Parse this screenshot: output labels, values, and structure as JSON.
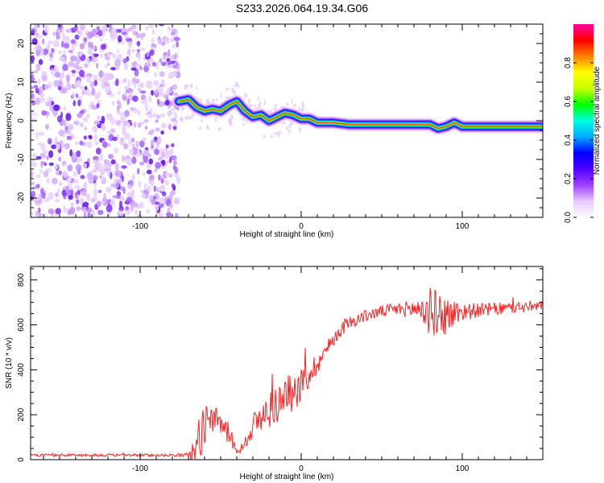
{
  "title": "S233.2026.064.19.34.G06",
  "chart_data": [
    {
      "type": "heatmap",
      "title": "S233.2026.064.19.34.G06",
      "xlabel": "Height of straight line (km)",
      "ylabel": "Frequency (Hz)",
      "xlim": [
        -168,
        150
      ],
      "ylim": [
        -25,
        25
      ],
      "xticks": [
        -100,
        0,
        100
      ],
      "yticks": [
        -20,
        -10,
        0,
        10,
        20
      ],
      "noise_region_x": [
        -168,
        -76
      ],
      "ridge": {
        "x": [
          -76,
          -70,
          -65,
          -60,
          -55,
          -50,
          -45,
          -40,
          -35,
          -30,
          -25,
          -20,
          -15,
          -10,
          -5,
          0,
          5,
          10,
          20,
          30,
          40,
          50,
          60,
          70,
          80,
          85,
          90,
          95,
          100,
          110,
          120,
          130,
          140,
          150
        ],
        "y": [
          5,
          5.5,
          3.5,
          2.5,
          3,
          2.5,
          4,
          5,
          2.5,
          1,
          1.5,
          0,
          1,
          2,
          1.5,
          0.5,
          0.5,
          -0.5,
          -0.5,
          -1,
          -1,
          -1,
          -1,
          -1,
          -1,
          -2,
          -1.5,
          -0.5,
          -1.5,
          -1.5,
          -1.5,
          -1.5,
          -1.5,
          -1.5
        ]
      },
      "colorbar": {
        "label": "Normalized spectral amplitude",
        "range": [
          0,
          1
        ],
        "ticks": [
          "0.0",
          "0.2",
          "0.4",
          "0.6",
          "0.8"
        ],
        "tick_values": [
          0,
          0.2,
          0.4,
          0.6,
          0.8
        ],
        "colors": [
          "#ffffff",
          "#e8c8ff",
          "#a040ff",
          "#5000ff",
          "#0000ff",
          "#00aaff",
          "#00ffe0",
          "#00ff00",
          "#c8ff00",
          "#ffff00",
          "#ff8000",
          "#ff0000",
          "#ff00a0"
        ]
      }
    },
    {
      "type": "line",
      "xlabel": "Height of straight line (km)",
      "ylabel": "SNR (10 * v/v)",
      "xlim": [
        -168,
        150
      ],
      "ylim": [
        0,
        860
      ],
      "xticks": [
        -100,
        0,
        100
      ],
      "yticks": [
        0,
        200,
        400,
        600,
        800
      ],
      "color": "#ff2020",
      "envelope": {
        "x": [
          -168,
          -80,
          -70,
          -66,
          -62,
          -58,
          -55,
          -50,
          -45,
          -40,
          -38,
          -30,
          -25,
          -20,
          -15,
          -10,
          -5,
          0,
          5,
          10,
          15,
          20,
          25,
          30,
          40,
          50,
          60,
          70,
          75,
          80,
          85,
          90,
          95,
          100,
          110,
          120,
          130,
          140,
          150
        ],
        "base": [
          20,
          20,
          20,
          40,
          120,
          200,
          180,
          160,
          120,
          40,
          40,
          150,
          180,
          220,
          250,
          280,
          300,
          330,
          380,
          430,
          480,
          540,
          580,
          610,
          640,
          660,
          670,
          670,
          670,
          660,
          650,
          640,
          650,
          660,
          665,
          670,
          675,
          680,
          680
        ],
        "amp": [
          12,
          12,
          20,
          150,
          200,
          150,
          120,
          120,
          100,
          30,
          30,
          120,
          150,
          170,
          180,
          180,
          170,
          160,
          130,
          100,
          80,
          70,
          60,
          60,
          55,
          55,
          60,
          80,
          200,
          220,
          200,
          180,
          130,
          90,
          60,
          60,
          55,
          55,
          50
        ]
      }
    }
  ]
}
